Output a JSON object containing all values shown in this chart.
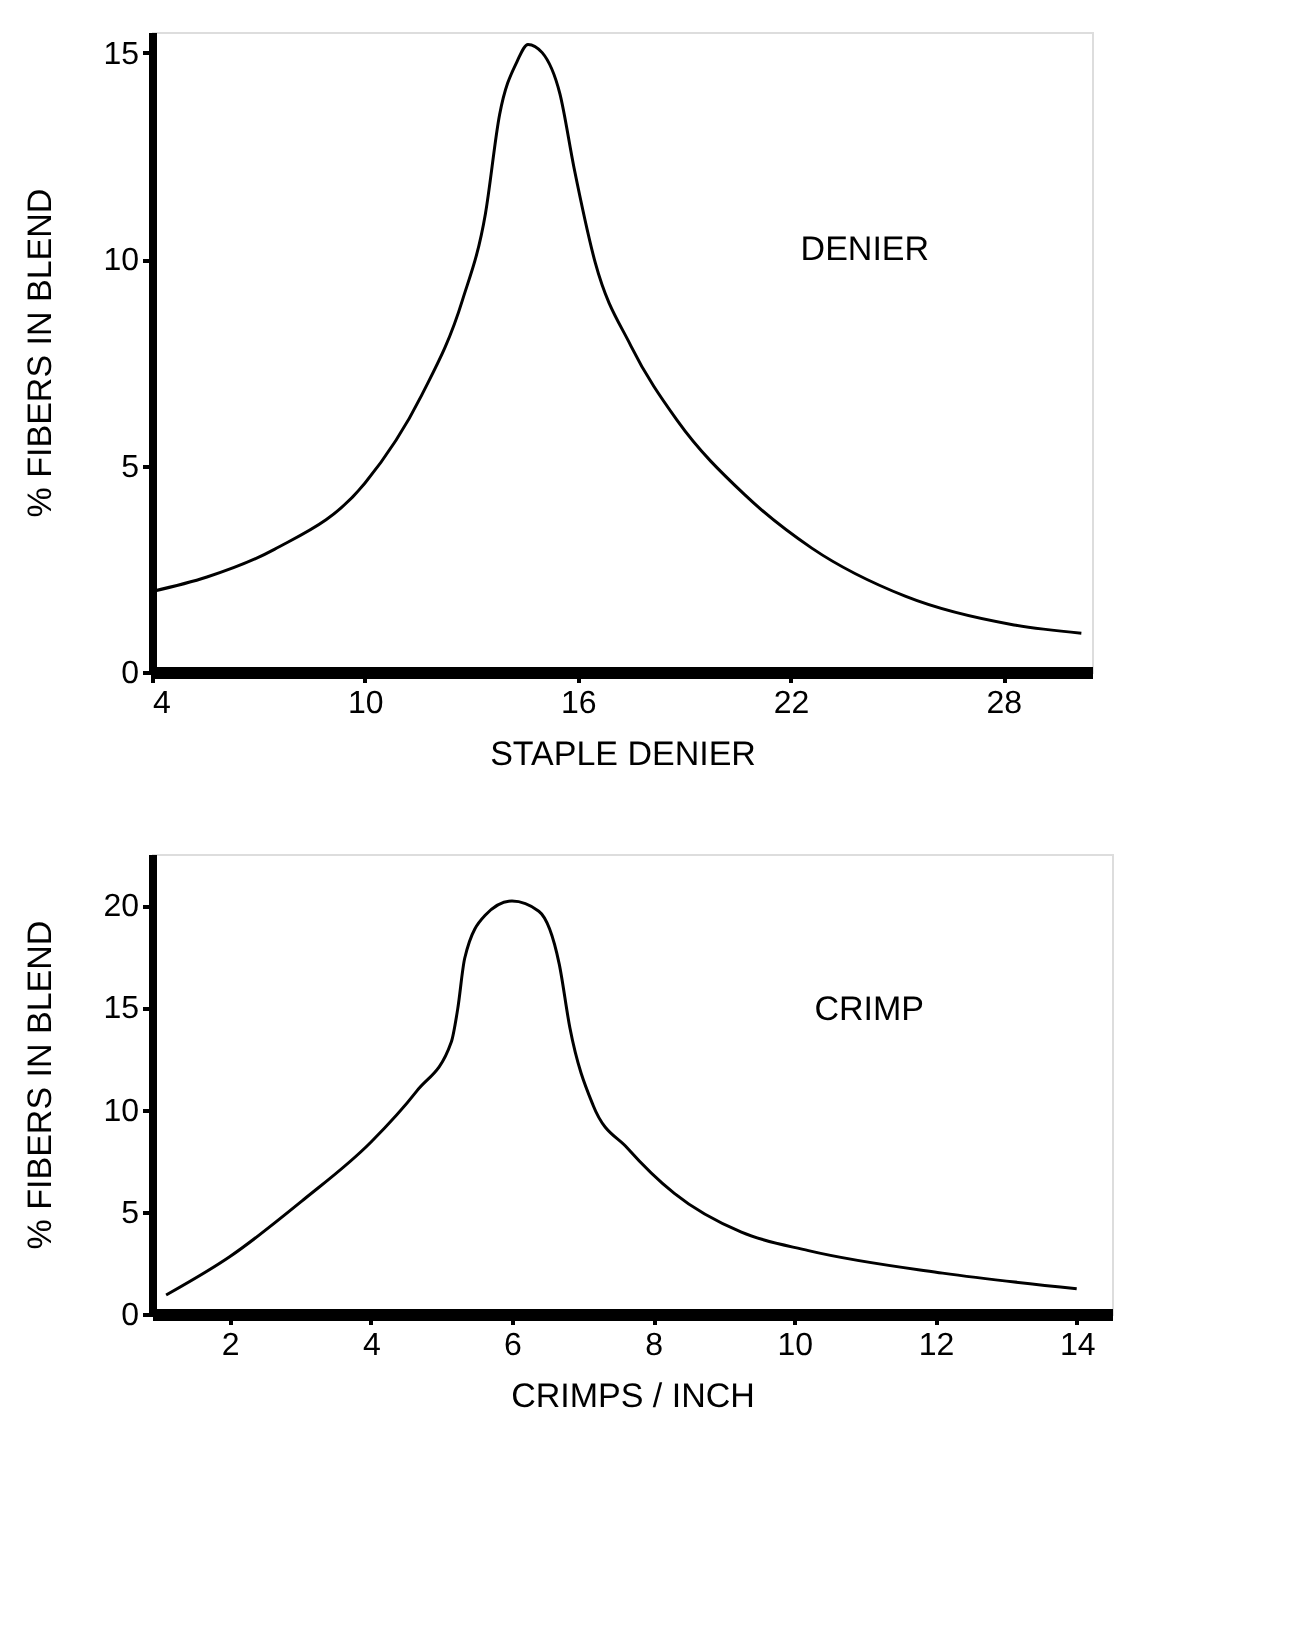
{
  "chart_data": [
    {
      "type": "line",
      "xlabel": "STAPLE DENIER",
      "ylabel": "% FIBERS IN BLEND",
      "xlim": [
        4,
        30.5
      ],
      "ylim": [
        0,
        15.5
      ],
      "xticks": [
        4,
        10,
        16,
        22,
        28
      ],
      "yticks": [
        0,
        5,
        10,
        15
      ],
      "grid": false,
      "legend": false,
      "marker": "none",
      "line_style": "solid",
      "series": [
        {
          "name": "DENIER",
          "color": "#000000",
          "x": [
            4,
            5.55,
            7.45,
            10.0,
            11.6,
            12.75,
            13.4,
            13.8,
            14.3,
            14.6,
            15.0,
            15.5,
            15.9,
            16.5,
            17.5,
            18.8,
            20.7,
            22.6,
            25.25,
            28.3,
            30.2
          ],
          "values": [
            1.95,
            2.3,
            2.97,
            4.57,
            6.7,
            9.0,
            11.1,
            13.5,
            14.8,
            15.2,
            15.0,
            14.0,
            12.2,
            9.9,
            7.9,
            6.1,
            4.3,
            3.0,
            1.83,
            1.14,
            0.94
          ]
        }
      ]
    },
    {
      "type": "line",
      "xlabel": "CRIMPS / INCH",
      "ylabel": "% FIBERS IN BLEND",
      "xlim": [
        0.9,
        14.5
      ],
      "ylim": [
        0,
        22.5
      ],
      "xticks": [
        2,
        4,
        6,
        8,
        10,
        12,
        14
      ],
      "yticks": [
        0,
        5,
        10,
        15,
        20
      ],
      "grid": false,
      "legend": false,
      "marker": "none",
      "line_style": "solid",
      "series": [
        {
          "name": "CRIMP",
          "color": "#000000",
          "x": [
            1.1,
            2.0,
            3.05,
            4.0,
            4.65,
            5.14,
            5.23,
            5.33,
            5.62,
            6.0,
            6.38,
            6.67,
            6.82,
            7.15,
            7.64,
            8.3,
            9.25,
            10.2,
            12.1,
            14.0
          ],
          "values": [
            0.93,
            2.8,
            5.6,
            8.4,
            10.9,
            13.3,
            14.9,
            17.4,
            19.5,
            20.2,
            19.7,
            17.1,
            14.0,
            10.2,
            8.1,
            5.9,
            4.0,
            3.1,
            2.0,
            1.24
          ]
        }
      ]
    }
  ]
}
